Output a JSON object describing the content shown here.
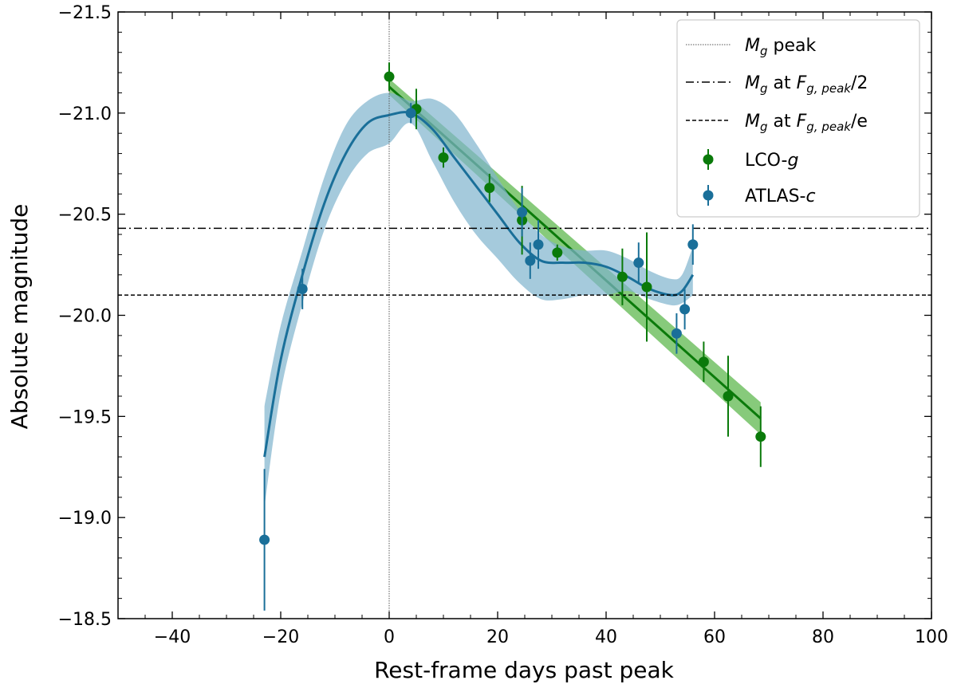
{
  "chart_data": {
    "type": "scatter",
    "title": "",
    "xlabel": "Rest-frame days past peak",
    "ylabel": "Absolute magnitude",
    "xlim": [
      -50,
      100
    ],
    "ylim": [
      -18.5,
      -21.5
    ],
    "y_inverted": true,
    "grid": false,
    "legend_position": "top-right",
    "x_ticks": [
      -40,
      -20,
      0,
      20,
      40,
      60,
      80,
      100
    ],
    "y_ticks": [
      -21.5,
      -21.0,
      -20.5,
      -20.0,
      -19.5,
      -19.0,
      -18.5
    ],
    "x_tick_labels": [
      "−40",
      "−20",
      "0",
      "20",
      "40",
      "60",
      "80",
      "100"
    ],
    "y_tick_labels": [
      "−21.5",
      "−21.0",
      "−20.5",
      "−20.0",
      "−19.5",
      "−19.0",
      "−18.5"
    ],
    "reference_lines": [
      {
        "name": "Mg peak",
        "orientation": "vertical",
        "value": 0,
        "style": "dotted",
        "color": "#555555"
      },
      {
        "name": "Mg at Fg,peak/2",
        "orientation": "horizontal",
        "value": -20.43,
        "style": "dashdot",
        "color": "#000000"
      },
      {
        "name": "Mg at Fg,peak/e",
        "orientation": "horizontal",
        "value": -20.1,
        "style": "dashed",
        "color": "#000000"
      }
    ],
    "series": [
      {
        "name": "LCO-g",
        "color": "#0a7a0a",
        "points": [
          {
            "x": 0,
            "y": -21.18,
            "err": 0.07
          },
          {
            "x": 5,
            "y": -21.02,
            "err": 0.1
          },
          {
            "x": 10,
            "y": -20.78,
            "err": 0.05
          },
          {
            "x": 18.5,
            "y": -20.63,
            "err": 0.07
          },
          {
            "x": 24.5,
            "y": -20.47,
            "err": 0.17
          },
          {
            "x": 31,
            "y": -20.31,
            "err": 0.04
          },
          {
            "x": 43,
            "y": -20.19,
            "err": 0.14
          },
          {
            "x": 47.5,
            "y": -20.14,
            "err": 0.27
          },
          {
            "x": 58,
            "y": -19.77,
            "err": 0.1
          },
          {
            "x": 62.5,
            "y": -19.6,
            "err": 0.2
          },
          {
            "x": 68.5,
            "y": -19.4,
            "err": 0.15
          }
        ]
      },
      {
        "name": "ATLAS-c",
        "color": "#1a6f99",
        "points": [
          {
            "x": -23,
            "y": -18.89,
            "err": 0.35
          },
          {
            "x": -16,
            "y": -20.13,
            "err": 0.1
          },
          {
            "x": 4,
            "y": -21.0,
            "err": 0.05
          },
          {
            "x": 24.5,
            "y": -20.51,
            "err": 0.12
          },
          {
            "x": 26,
            "y": -20.27,
            "err": 0.09
          },
          {
            "x": 27.5,
            "y": -20.35,
            "err": 0.12
          },
          {
            "x": 46,
            "y": -20.26,
            "err": 0.1
          },
          {
            "x": 53,
            "y": -19.91,
            "err": 0.1
          },
          {
            "x": 54.5,
            "y": -20.03,
            "err": 0.1
          },
          {
            "x": 56,
            "y": -20.35,
            "err": 0.1
          }
        ]
      }
    ],
    "fits": [
      {
        "for": "LCO-g",
        "kind": "linear",
        "color": "#0a7a0a",
        "band_color": "#5fb84f",
        "x": [
          0,
          68.5
        ],
        "y": [
          -21.13,
          -19.49
        ],
        "band_halfwidth": [
          0.04,
          0.08
        ]
      },
      {
        "for": "ATLAS-c",
        "kind": "gp",
        "color": "#1a6f99",
        "band_color": "#7fb4cd",
        "x": [
          -23,
          -20,
          -16,
          -12,
          -8,
          -4,
          0,
          4,
          8,
          12,
          16,
          20,
          24,
          28,
          32,
          36,
          40,
          44,
          48,
          52,
          54,
          56
        ],
        "y": [
          -19.3,
          -19.78,
          -20.2,
          -20.55,
          -20.8,
          -20.95,
          -20.99,
          -21.0,
          -20.92,
          -20.78,
          -20.64,
          -20.5,
          -20.36,
          -20.27,
          -20.26,
          -20.26,
          -20.24,
          -20.19,
          -20.13,
          -20.1,
          -20.12,
          -20.2
        ],
        "band_lo": [
          -19.05,
          -19.62,
          -20.06,
          -20.42,
          -20.66,
          -20.8,
          -20.85,
          -20.95,
          -20.76,
          -20.56,
          -20.4,
          -20.28,
          -20.16,
          -20.08,
          -20.08,
          -20.1,
          -20.1,
          -20.12,
          -20.08,
          -20.05,
          -20.06,
          -20.1
        ],
        "band_hi": [
          -19.55,
          -19.95,
          -20.32,
          -20.68,
          -20.94,
          -21.06,
          -21.1,
          -21.06,
          -21.07,
          -21.0,
          -20.85,
          -20.68,
          -20.52,
          -20.4,
          -20.34,
          -20.32,
          -20.32,
          -20.28,
          -20.22,
          -20.18,
          -20.2,
          -20.34
        ]
      }
    ],
    "legend": [
      {
        "key": "peak",
        "style": "dotted",
        "color": "#555555",
        "label_prefix": "M",
        "label_sub": "g",
        "label_suffix": " peak"
      },
      {
        "key": "half",
        "style": "dashdot",
        "color": "#000000",
        "label_prefix": "M",
        "label_sub": "g",
        "label_mid": " at ",
        "label_f": "F",
        "label_fsub": "g, peak",
        "label_end": "/2"
      },
      {
        "key": "e",
        "style": "dashed",
        "color": "#000000",
        "label_prefix": "M",
        "label_sub": "g",
        "label_mid": " at ",
        "label_f": "F",
        "label_fsub": "g, peak",
        "label_end": "/e"
      },
      {
        "key": "lco",
        "style": "marker",
        "color": "#0a7a0a",
        "label_main": "LCO-",
        "label_it": "g"
      },
      {
        "key": "atlas",
        "style": "marker",
        "color": "#1a6f99",
        "label_main": "ATLAS-",
        "label_it": "c"
      }
    ]
  }
}
